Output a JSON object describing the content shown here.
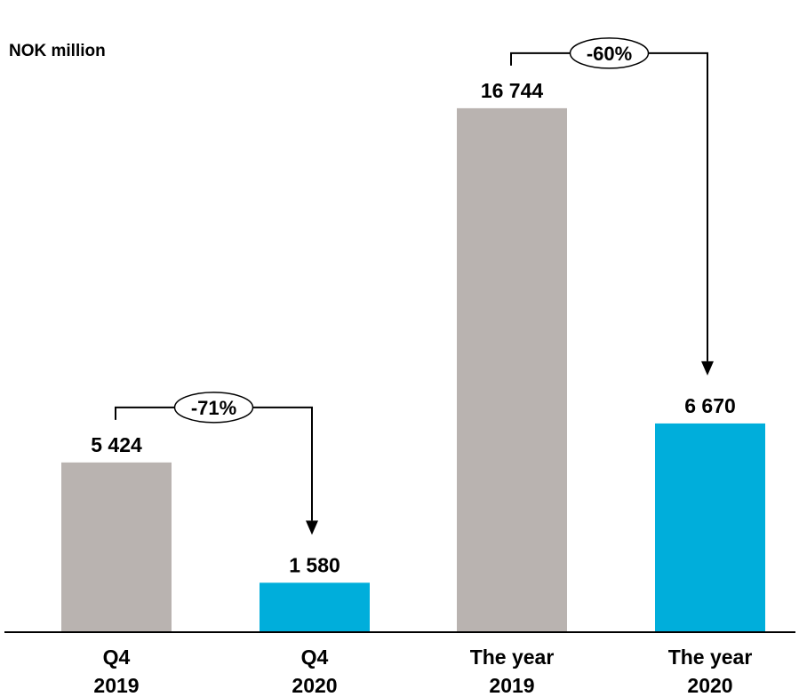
{
  "chart_data": {
    "type": "bar",
    "unit_label": "NOK million",
    "categories": [
      [
        "Q4",
        "2019"
      ],
      [
        "Q4",
        "2020"
      ],
      [
        "The year",
        "2019"
      ],
      [
        "The year",
        "2020"
      ]
    ],
    "values": [
      5424,
      1580,
      16744,
      6670
    ],
    "value_labels": [
      "5 424",
      "1 580",
      "16 744",
      "6 670"
    ],
    "bar_colors": [
      "#b9b3b0",
      "#00aedb",
      "#b9b3b0",
      "#00aedb"
    ],
    "ylim": [
      0,
      18500
    ],
    "grid": false,
    "annotations": [
      {
        "from": 0,
        "to": 1,
        "label": "-71%"
      },
      {
        "from": 2,
        "to": 3,
        "label": "-60%"
      }
    ]
  }
}
